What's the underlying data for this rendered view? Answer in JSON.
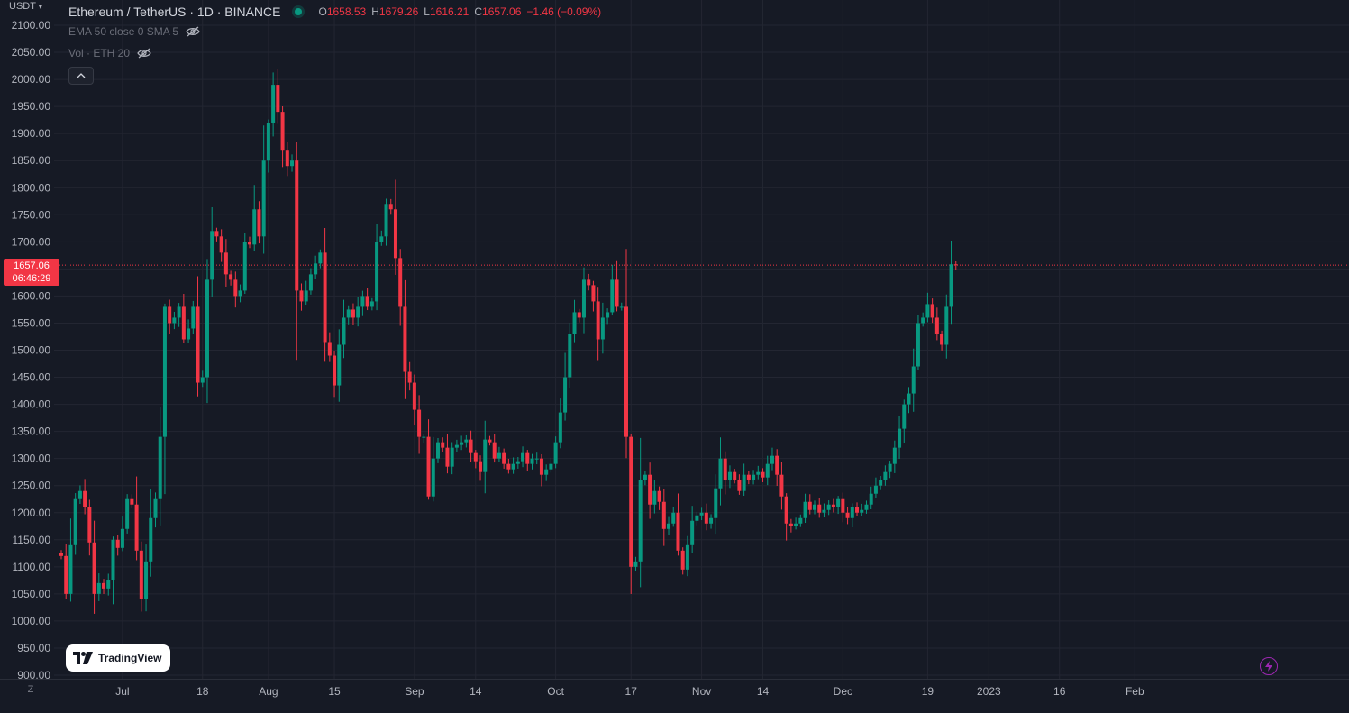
{
  "header": {
    "currency": "USDT",
    "symbol": "Ethereum / TetherUS · 1D · BINANCE",
    "ohlc": {
      "o_label": "O",
      "o": "1658.53",
      "h_label": "H",
      "h": "1679.26",
      "l_label": "L",
      "l": "1616.21",
      "c_label": "C",
      "c": "1657.06",
      "change": "−1.46 (−0.09%)"
    }
  },
  "indicators": [
    {
      "label": "EMA 50 close 0 SMA 5"
    },
    {
      "label": "Vol · ETH 20"
    }
  ],
  "last_price": {
    "value": "1657.06",
    "countdown": "06:46:29"
  },
  "logo_text": "TradingView",
  "z_button": "Z",
  "colors": {
    "up": "#089981",
    "down": "#f23645",
    "background": "#161a25",
    "grid": "#232632",
    "price_line": "#f23645",
    "accent": "#9c27b0"
  },
  "icons": {
    "eye_hidden": "eye-off-icon",
    "collapse": "chevron-up-icon",
    "bolt": "lightning-icon",
    "currency_menu": "chevron-down-icon"
  },
  "chart_data": {
    "type": "candlestick",
    "title": "Ethereum / TetherUS · 1D · BINANCE",
    "xlabel": "",
    "ylabel": "USDT",
    "ylim": [
      900,
      2100
    ],
    "y_ticks": [
      "2100.00",
      "2050.00",
      "2000.00",
      "1950.00",
      "1900.00",
      "1850.00",
      "1800.00",
      "1750.00",
      "1700.00",
      "1650.00",
      "1600.00",
      "1550.00",
      "1500.00",
      "1450.00",
      "1400.00",
      "1350.00",
      "1300.00",
      "1250.00",
      "1200.00",
      "1150.00",
      "1100.00",
      "1050.00",
      "1000.00",
      "950.00",
      "900.00"
    ],
    "x_start": "2022-06-18",
    "x_ticks": [
      {
        "label": "Jul",
        "date": "2022-07-01"
      },
      {
        "label": "18",
        "date": "2022-07-18"
      },
      {
        "label": "Aug",
        "date": "2022-08-01"
      },
      {
        "label": "15",
        "date": "2022-08-15"
      },
      {
        "label": "Sep",
        "date": "2022-09-01"
      },
      {
        "label": "14",
        "date": "2022-09-14"
      },
      {
        "label": "Oct",
        "date": "2022-10-01"
      },
      {
        "label": "17",
        "date": "2022-10-17"
      },
      {
        "label": "Nov",
        "date": "2022-11-01"
      },
      {
        "label": "14",
        "date": "2022-11-14"
      },
      {
        "label": "Dec",
        "date": "2022-12-01"
      },
      {
        "label": "19",
        "date": "2022-12-19"
      },
      {
        "label": "2023",
        "date": "2023-01-01"
      },
      {
        "label": "16",
        "date": "2023-01-16"
      },
      {
        "label": "Feb",
        "date": "2023-02-01"
      }
    ],
    "grid": true,
    "close_series": [
      1120,
      1050,
      1140,
      1225,
      1240,
      1210,
      1145,
      1050,
      1070,
      1060,
      1075,
      1150,
      1135,
      1170,
      1225,
      1215,
      1130,
      1040,
      1110,
      1190,
      1225,
      1340,
      1580,
      1550,
      1560,
      1580,
      1520,
      1540,
      1580,
      1440,
      1450,
      1630,
      1720,
      1710,
      1680,
      1640,
      1630,
      1600,
      1610,
      1700,
      1695,
      1760,
      1710,
      1850,
      1920,
      1990,
      1940,
      1870,
      1840,
      1850,
      1610,
      1590,
      1610,
      1640,
      1660,
      1680,
      1515,
      1490,
      1435,
      1510,
      1560,
      1575,
      1560,
      1580,
      1600,
      1580,
      1590,
      1700,
      1710,
      1770,
      1760,
      1670,
      1580,
      1460,
      1440,
      1390,
      1340,
      1340,
      1230,
      1300,
      1330,
      1320,
      1285,
      1320,
      1325,
      1330,
      1335,
      1310,
      1295,
      1275,
      1335,
      1330,
      1300,
      1310,
      1290,
      1280,
      1290,
      1295,
      1310,
      1290,
      1300,
      1300,
      1270,
      1280,
      1290,
      1330,
      1385,
      1450,
      1530,
      1570,
      1560,
      1630,
      1620,
      1590,
      1520,
      1560,
      1570,
      1630,
      1580,
      1580,
      1340,
      1100,
      1110,
      1260,
      1270,
      1215,
      1240,
      1220,
      1170,
      1180,
      1200,
      1130,
      1095,
      1140,
      1185,
      1195,
      1200,
      1180,
      1190,
      1245,
      1300,
      1260,
      1275,
      1260,
      1240,
      1270,
      1260,
      1270,
      1275,
      1265,
      1290,
      1305,
      1270,
      1230,
      1180,
      1175,
      1180,
      1190,
      1220,
      1205,
      1215,
      1200,
      1205,
      1215,
      1210,
      1225,
      1200,
      1190,
      1210,
      1200,
      1205,
      1215,
      1235,
      1250,
      1260,
      1275,
      1290,
      1320,
      1355,
      1400,
      1420,
      1470,
      1550,
      1560,
      1585,
      1560,
      1530,
      1510,
      1580,
      1658.53,
      1657.06
    ]
  }
}
